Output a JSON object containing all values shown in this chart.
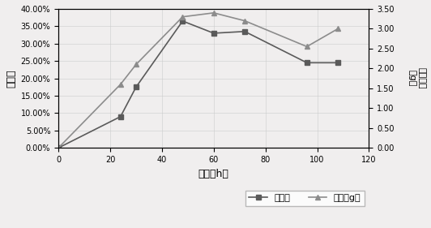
{
  "time": [
    0,
    24,
    30,
    48,
    60,
    72,
    96,
    108
  ],
  "adsorption_rate": [
    0.0,
    0.09,
    0.175,
    0.365,
    0.33,
    0.335,
    0.245,
    0.245
  ],
  "fungal_mass": [
    0.0,
    1.6,
    2.1,
    3.3,
    3.4,
    3.2,
    2.55,
    3.0
  ],
  "adsorption_color": "#5a5a5a",
  "fungal_color": "#8c8c8c",
  "xlabel": "时间（h）",
  "ylabel_left": "吸附率",
  "ylabel_right": "菌体质量（g）",
  "legend_adsorption": "吸附率",
  "legend_fungal": "湿菌（g）",
  "xlim": [
    0,
    120
  ],
  "ylim_left": [
    0.0,
    0.4
  ],
  "ylim_right": [
    0.0,
    3.5
  ],
  "xticks": [
    0,
    20,
    40,
    60,
    80,
    100,
    120
  ],
  "yticks_left": [
    0.0,
    0.05,
    0.1,
    0.15,
    0.2,
    0.25,
    0.3,
    0.35,
    0.4
  ],
  "yticks_right": [
    0.0,
    0.5,
    1.0,
    1.5,
    2.0,
    2.5,
    3.0,
    3.5
  ],
  "background_color": "#f0eeee"
}
